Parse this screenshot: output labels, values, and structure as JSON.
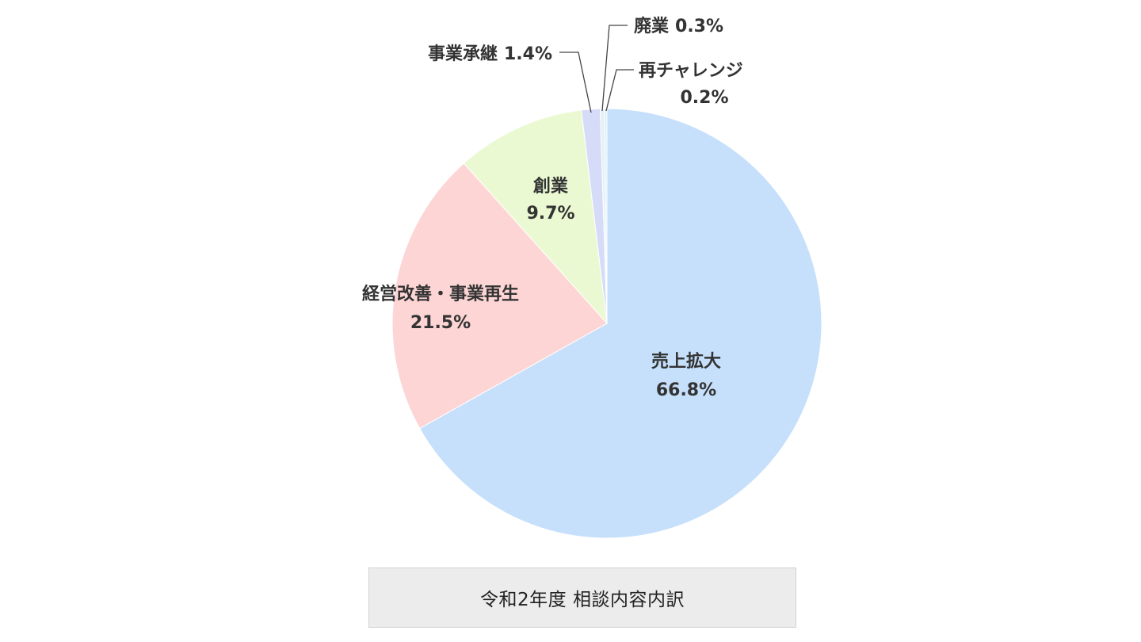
{
  "chart_data": {
    "type": "pie",
    "caption": "令和2年度 相談内容内訳",
    "slices": [
      {
        "name": "売上拡大",
        "value": 66.8,
        "value_label": "66.8%",
        "color": "#c6e0fb"
      },
      {
        "name": "経営改善・事業再生",
        "value": 21.5,
        "value_label": "21.5%",
        "color": "#fdd5d5"
      },
      {
        "name": "創業",
        "value": 9.7,
        "value_label": "9.7%",
        "color": "#ebf9d2"
      },
      {
        "name": "事業承継",
        "value": 1.4,
        "value_label": "1.4%",
        "color": "#d6dcf8"
      },
      {
        "name": "廃業",
        "value": 0.3,
        "value_label": "0.3%",
        "color": "#e8eef5"
      },
      {
        "name": "再チャレンジ",
        "value": 0.2,
        "value_label": "0.2%",
        "color": "#d4f2fb"
      }
    ],
    "start_angle": "12 o'clock",
    "direction": "clockwise"
  }
}
